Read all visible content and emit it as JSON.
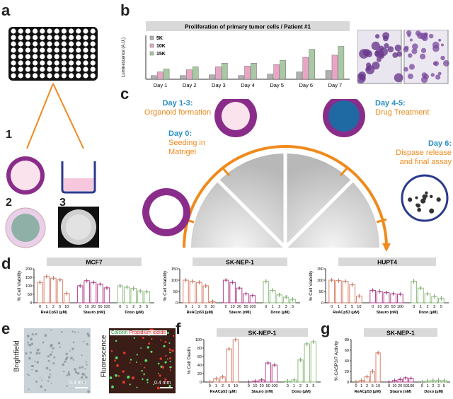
{
  "panels": {
    "a": {
      "letter": "a",
      "step1": "1",
      "step2": "2",
      "step3": "3"
    },
    "b": {
      "letter": "b"
    },
    "c": {
      "letter": "c",
      "day0": {
        "day": "Day 0:",
        "desc": "Seeding in Matrigel"
      },
      "day13": {
        "day": "Day 1-3:",
        "desc": "Organoid formation"
      },
      "day45": {
        "day": "Day 4-5:",
        "desc": "Drug Treatment"
      },
      "day6": {
        "day": "Day 6:",
        "desc": "Dispase release and final assay"
      }
    },
    "d": {
      "letter": "d"
    },
    "e": {
      "letter": "e",
      "left_label": "Brightfield",
      "right_label": "Fluorescence",
      "scalebar": "0.4 mm",
      "calcein": "Calcein",
      "pi": "Propidium iodide"
    },
    "f": {
      "letter": "f"
    },
    "g": {
      "letter": "g"
    }
  },
  "colors": {
    "orange": "#f08a1c",
    "blue": "#2a8fc4",
    "purple": "#8a2d8a",
    "pink": "#e8b3d4",
    "dark_blue": "#2a3a8c",
    "grey_panel": "#d9d9d9"
  },
  "chart_data": [
    {
      "id": "b",
      "type": "bar",
      "title": "Proliferation of primary tumor cells / Patient #1",
      "ylabel": "Luminescence (A.U.)",
      "ylim": [
        0,
        60
      ],
      "categories": [
        "Day 1",
        "Day 2",
        "Day 3",
        "Day 4",
        "Day 5",
        "Day 6",
        "Day 7"
      ],
      "series": [
        {
          "name": "5K",
          "color": "#b0b0b0",
          "values": [
            5,
            5,
            6,
            5,
            7,
            10,
            12
          ]
        },
        {
          "name": "10K",
          "color": "#e8a6c4",
          "values": [
            10,
            13,
            17,
            18,
            20,
            30,
            33
          ]
        },
        {
          "name": "15K",
          "color": "#a9c9a4",
          "values": [
            14,
            17,
            22,
            22,
            26,
            41,
            45
          ]
        }
      ]
    },
    {
      "id": "d1",
      "type": "bar",
      "title": "MCF7",
      "ylabel": "% Cell Viability",
      "ylim": [
        0,
        200
      ],
      "yticks": [
        0,
        50,
        100,
        150,
        200
      ],
      "groups": [
        {
          "name": "ReACp53 (µM)",
          "ticks": [
            "0",
            "1",
            "2",
            "5",
            "10"
          ],
          "color": "#d9826b",
          "values": [
            120,
            155,
            145,
            135,
            55
          ]
        },
        {
          "name": "Stauro (nM)",
          "ticks": [
            "0",
            "10",
            "20",
            "50",
            "100"
          ],
          "color": "#b5418c",
          "values": [
            100,
            130,
            120,
            110,
            88
          ]
        },
        {
          "name": "Doxo (µM)",
          "ticks": [
            "0",
            "1",
            "2",
            "3",
            "5"
          ],
          "color": "#8fbf7f",
          "values": [
            100,
            92,
            85,
            70,
            65
          ]
        }
      ]
    },
    {
      "id": "d2",
      "type": "bar",
      "title": "SK-NEP-1",
      "ylabel": "% Cell Viability",
      "ylim": [
        0,
        150
      ],
      "yticks": [
        0,
        50,
        100,
        150
      ],
      "groups": [
        {
          "name": "ReACp53 (µM)",
          "ticks": [
            "0",
            "1",
            "2",
            "5",
            "10"
          ],
          "color": "#d9826b",
          "values": [
            100,
            95,
            90,
            75,
            5
          ]
        },
        {
          "name": "Stauro (nM)",
          "ticks": [
            "0",
            "10",
            "20",
            "50",
            "100"
          ],
          "color": "#b5418c",
          "values": [
            100,
            90,
            65,
            40,
            32
          ]
        },
        {
          "name": "Doxo (µM)",
          "ticks": [
            "0",
            "1",
            "2",
            "3",
            "5"
          ],
          "color": "#8fbf7f",
          "values": [
            95,
            55,
            35,
            25,
            15
          ]
        }
      ]
    },
    {
      "id": "d3",
      "type": "bar",
      "title": "HUPT4",
      "ylabel": "% Cell Viability",
      "ylim": [
        0,
        150
      ],
      "yticks": [
        0,
        50,
        100,
        150
      ],
      "groups": [
        {
          "name": "ReACp53 (µM)",
          "ticks": [
            "0",
            "1",
            "2",
            "5",
            "10"
          ],
          "color": "#d9826b",
          "values": [
            100,
            98,
            95,
            80,
            30
          ]
        },
        {
          "name": "Stauro (nM)",
          "ticks": [
            "0",
            "10",
            "20",
            "50",
            "100"
          ],
          "color": "#b5418c",
          "values": [
            55,
            50,
            45,
            40,
            38
          ]
        },
        {
          "name": "Doxo (µM)",
          "ticks": [
            "0",
            "1",
            "2",
            "3",
            "5"
          ],
          "color": "#8fbf7f",
          "values": [
            95,
            65,
            40,
            28,
            20
          ]
        }
      ]
    },
    {
      "id": "f",
      "type": "bar",
      "title": "SK-NEP-1",
      "ylabel": "% Cell Death",
      "ylim": [
        0,
        100
      ],
      "yticks": [
        0,
        20,
        40,
        60,
        80,
        100
      ],
      "groups": [
        {
          "name": "ReACp53 (µM)",
          "ticks": [
            "0",
            "1",
            "2",
            "5",
            "10"
          ],
          "color": "#d9826b",
          "values": [
            0,
            8,
            12,
            78,
            100
          ]
        },
        {
          "name": "Stauro (nM)",
          "ticks": [
            "0",
            "10",
            "20",
            "50",
            "100"
          ],
          "color": "#b5418c",
          "values": [
            0,
            2,
            5,
            45,
            40
          ]
        },
        {
          "name": "Doxo (µM)",
          "ticks": [
            "0",
            "1",
            "2",
            "3",
            "5"
          ],
          "color": "#8fbf7f",
          "values": [
            2,
            5,
            52,
            90,
            95
          ]
        }
      ]
    },
    {
      "id": "g",
      "type": "bar",
      "title": "SK-NEP-1",
      "ylabel": "% CASP3/7 Activity",
      "ylim": [
        0,
        80
      ],
      "yticks": [
        0,
        20,
        40,
        60,
        80
      ],
      "groups": [
        {
          "name": "ReACp53 (µM)",
          "ticks": [
            "0",
            "1",
            "2",
            "5",
            "10"
          ],
          "color": "#d9826b",
          "values": [
            0,
            3,
            10,
            20,
            55
          ]
        },
        {
          "name": "Stauro (nM)",
          "ticks": [
            "0",
            "10",
            "20",
            "50",
            "100"
          ],
          "color": "#b5418c",
          "values": [
            0,
            3,
            5,
            8,
            7
          ]
        },
        {
          "name": "Doxo (µM)",
          "ticks": [
            "0",
            "1",
            "2",
            "3",
            "5"
          ],
          "color": "#8fbf7f",
          "values": [
            0,
            2,
            3,
            3,
            3
          ]
        }
      ]
    }
  ]
}
